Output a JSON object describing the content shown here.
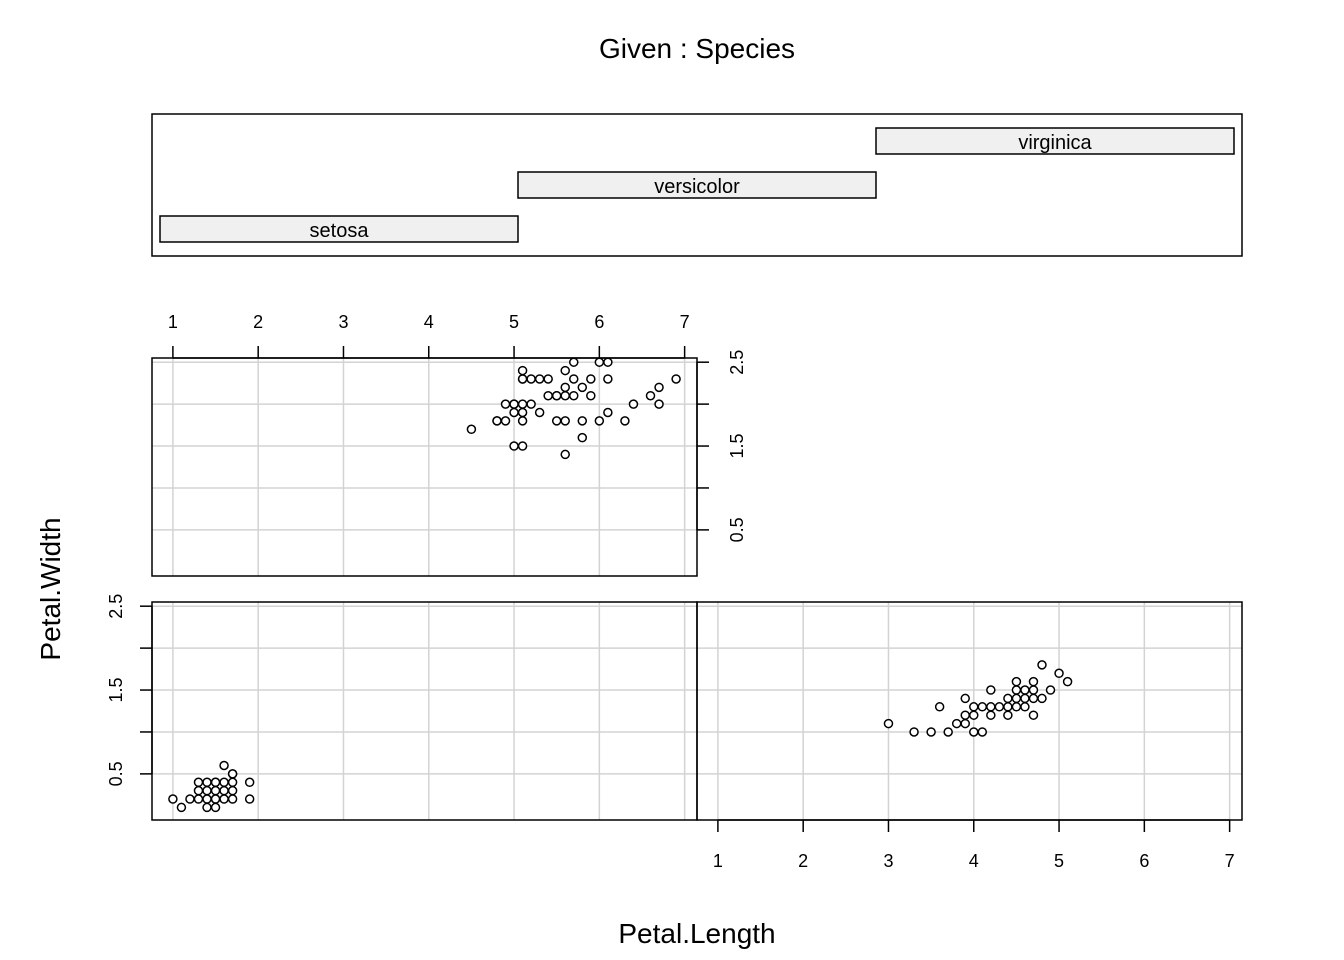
{
  "chart_data": {
    "type": "scatter",
    "kind": "coplot",
    "title": "Given : Species",
    "xlabel": "Petal.Length",
    "ylabel": "Petal.Width",
    "xlim": [
      1,
      7
    ],
    "ylim": [
      0,
      2.5
    ],
    "x_ticks": [
      "1",
      "2",
      "3",
      "4",
      "5",
      "6",
      "7"
    ],
    "y_tick_labels": [
      "0.5",
      "1.5",
      "2.5"
    ],
    "grid": true,
    "given_levels": [
      "setosa",
      "versicolor",
      "virginica"
    ],
    "series": [
      {
        "name": "setosa",
        "x": [
          1.0,
          1.1,
          1.2,
          1.3,
          1.3,
          1.4,
          1.4,
          1.5,
          1.5,
          1.5,
          1.6,
          1.6,
          1.7,
          1.7,
          1.7,
          1.7,
          1.9,
          1.9,
          1.4,
          1.5,
          1.5,
          1.3,
          1.4,
          1.5,
          1.6,
          1.6,
          1.7
        ],
        "y": [
          0.2,
          0.1,
          0.2,
          0.2,
          0.3,
          0.1,
          0.2,
          0.1,
          0.2,
          0.3,
          0.2,
          0.4,
          0.2,
          0.3,
          0.4,
          0.5,
          0.2,
          0.4,
          0.3,
          0.4,
          0.4,
          0.4,
          0.4,
          0.2,
          0.6,
          0.3,
          0.5
        ]
      },
      {
        "name": "versicolor",
        "x": [
          3.0,
          3.3,
          3.5,
          3.6,
          3.7,
          3.8,
          3.9,
          3.9,
          3.9,
          4.0,
          4.0,
          4.0,
          4.1,
          4.1,
          4.2,
          4.2,
          4.2,
          4.3,
          4.4,
          4.4,
          4.4,
          4.5,
          4.5,
          4.5,
          4.5,
          4.6,
          4.6,
          4.6,
          4.7,
          4.7,
          4.7,
          4.7,
          4.8,
          4.8,
          4.9,
          5.0,
          5.1
        ],
        "y": [
          1.1,
          1.0,
          1.0,
          1.3,
          1.0,
          1.1,
          1.1,
          1.2,
          1.4,
          1.0,
          1.2,
          1.3,
          1.0,
          1.3,
          1.2,
          1.3,
          1.5,
          1.3,
          1.2,
          1.3,
          1.4,
          1.3,
          1.4,
          1.5,
          1.6,
          1.3,
          1.4,
          1.5,
          1.2,
          1.4,
          1.5,
          1.6,
          1.4,
          1.8,
          1.5,
          1.7,
          1.6
        ]
      },
      {
        "name": "virginica",
        "x": [
          4.5,
          4.8,
          4.8,
          4.9,
          4.9,
          5.0,
          5.0,
          5.0,
          5.0,
          5.1,
          5.1,
          5.1,
          5.1,
          5.1,
          5.1,
          5.1,
          5.2,
          5.2,
          5.3,
          5.3,
          5.4,
          5.4,
          5.5,
          5.5,
          5.5,
          5.6,
          5.6,
          5.6,
          5.6,
          5.6,
          5.7,
          5.7,
          5.7,
          5.8,
          5.8,
          5.8,
          5.9,
          5.9,
          6.0,
          6.0,
          6.1,
          6.1,
          6.1,
          6.3,
          6.4,
          6.6,
          6.7,
          6.7,
          6.9
        ],
        "y": [
          1.7,
          1.8,
          1.8,
          1.8,
          2.0,
          1.5,
          1.9,
          2.0,
          2.0,
          1.5,
          1.8,
          1.9,
          2.0,
          2.3,
          2.3,
          2.4,
          2.0,
          2.3,
          1.9,
          2.3,
          2.1,
          2.3,
          1.8,
          2.1,
          2.1,
          1.4,
          1.8,
          2.1,
          2.2,
          2.4,
          2.1,
          2.3,
          2.5,
          1.6,
          1.8,
          2.2,
          2.1,
          2.3,
          1.8,
          2.5,
          1.9,
          2.3,
          2.5,
          1.8,
          2.0,
          2.1,
          2.0,
          2.2,
          2.3
        ]
      }
    ]
  }
}
